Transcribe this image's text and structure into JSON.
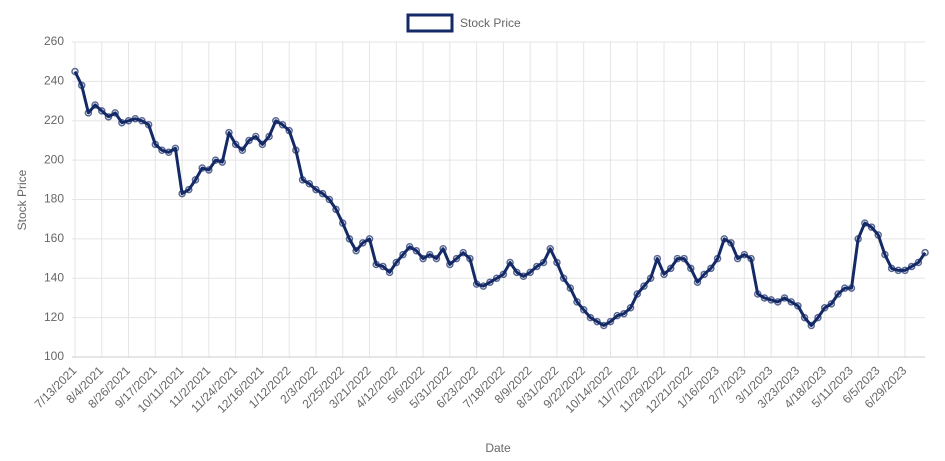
{
  "chart_data": {
    "type": "line",
    "x_label": "Date",
    "y_label": "Stock Price",
    "categories": [
      "7/13/2021",
      null,
      null,
      null,
      "8/4/2021",
      null,
      null,
      null,
      "8/26/2021",
      null,
      null,
      null,
      "9/17/2021",
      null,
      null,
      null,
      "10/11/2021",
      null,
      null,
      null,
      "11/2/2021",
      null,
      null,
      null,
      "11/24/2021",
      null,
      null,
      null,
      "12/16/2021",
      null,
      null,
      null,
      "1/12/2022",
      null,
      null,
      null,
      "2/3/2022",
      null,
      null,
      null,
      "2/25/2022",
      null,
      null,
      null,
      "3/21/2022",
      null,
      null,
      null,
      "4/12/2022",
      null,
      null,
      null,
      "5/6/2022",
      null,
      null,
      null,
      "5/31/2022",
      null,
      null,
      null,
      "6/23/2022",
      null,
      null,
      null,
      "7/18/2022",
      null,
      null,
      null,
      "8/9/2022",
      null,
      null,
      null,
      "8/31/2022",
      null,
      null,
      null,
      "9/22/2022",
      null,
      null,
      null,
      "10/14/2022",
      null,
      null,
      null,
      "11/7/2022",
      null,
      null,
      null,
      "11/29/2022",
      null,
      null,
      null,
      "12/21/2022",
      null,
      null,
      null,
      "1/16/2023",
      null,
      null,
      null,
      "2/7/2023",
      null,
      null,
      null,
      "3/1/2023",
      null,
      null,
      null,
      "3/23/2023",
      null,
      null,
      null,
      "4/18/2023",
      null,
      null,
      null,
      "5/11/2023",
      null,
      null,
      null,
      "6/5/2023",
      null,
      null,
      null,
      "6/29/2023",
      null,
      null,
      null
    ],
    "series": [
      {
        "name": "Stock Price",
        "color": "#142a66",
        "values": [
          245,
          238,
          224,
          228,
          225,
          222,
          224,
          219,
          220,
          221,
          220,
          218,
          208,
          205,
          204,
          206,
          183,
          185,
          190,
          196,
          195,
          200,
          199,
          214,
          208,
          205,
          210,
          212,
          208,
          212,
          220,
          218,
          215,
          205,
          190,
          188,
          185,
          183,
          180,
          175,
          168,
          160,
          154,
          158,
          160,
          147,
          146,
          143,
          148,
          152,
          156,
          154,
          150,
          152,
          150,
          155,
          147,
          150,
          153,
          150,
          137,
          136,
          138,
          140,
          142,
          148,
          143,
          141,
          143,
          146,
          148,
          155,
          148,
          140,
          135,
          128,
          124,
          120,
          118,
          116,
          118,
          121,
          122,
          125,
          132,
          136,
          140,
          150,
          142,
          145,
          150,
          150,
          145,
          138,
          142,
          145,
          150,
          160,
          158,
          150,
          152,
          150,
          132,
          130,
          129,
          128,
          130,
          128,
          126,
          120,
          116,
          120,
          125,
          127,
          132,
          135,
          135,
          160,
          168,
          166,
          162,
          152,
          145,
          144,
          144,
          146,
          148,
          153
        ]
      }
    ],
    "ylim": [
      100,
      260
    ],
    "yticks": [
      100,
      120,
      140,
      160,
      180,
      200,
      220,
      240,
      260
    ],
    "grid": true
  }
}
